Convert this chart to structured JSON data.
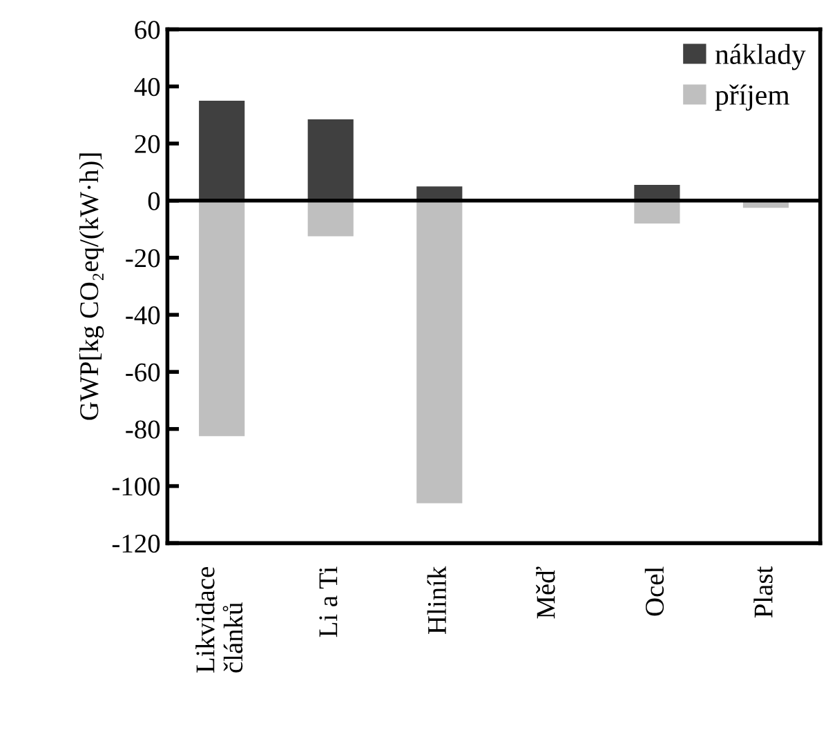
{
  "chart_data": {
    "type": "bar",
    "ylabel": "GWP[kg CO₂eq/(kW·h)]",
    "categories": [
      "Likvidace\nčlánků",
      "Li a Ti",
      "Hliník",
      "Měď",
      "Ocel",
      "Plast"
    ],
    "series": [
      {
        "name": "náklady",
        "color": "#404040",
        "values": [
          35,
          28.5,
          5,
          0,
          5.5,
          0
        ]
      },
      {
        "name": "příjem",
        "color": "#bfbfbf",
        "values": [
          -82.5,
          -12.5,
          -106,
          0,
          -8,
          -2.5
        ]
      }
    ],
    "stacked": true,
    "ylim": [
      -120,
      60
    ],
    "yticks": [
      -120,
      -100,
      -80,
      -60,
      -40,
      -20,
      0,
      20,
      40,
      60
    ],
    "ref_lines": [
      {
        "axis": "y",
        "value": 0,
        "color": "#000000"
      }
    ],
    "legend": "top right",
    "grid": false
  }
}
